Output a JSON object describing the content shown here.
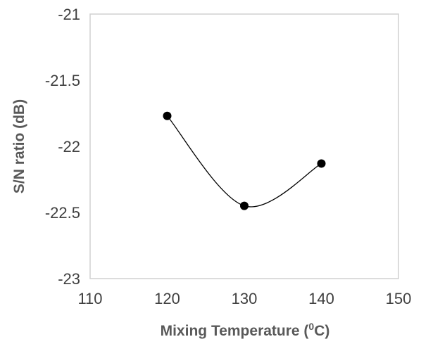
{
  "chart_data": {
    "type": "scatter",
    "title": "",
    "xlabel_main": "Mixing Temperature (",
    "xlabel_sup": "0",
    "xlabel_end": "C)",
    "ylabel": "S/N ratio (dB)",
    "xlim": [
      110,
      150
    ],
    "ylim": [
      -23,
      -21
    ],
    "x_ticks": [
      "110",
      "120",
      "130",
      "140",
      "150"
    ],
    "y_ticks": [
      "-21",
      "-21.5",
      "-22",
      "-22.5",
      "-23"
    ],
    "x_tick_values": [
      110,
      120,
      130,
      140,
      150
    ],
    "y_tick_values": [
      -21,
      -21.5,
      -22,
      -22.5,
      -23
    ],
    "grid": false,
    "smooth_line": true,
    "series": [
      {
        "x": [
          120,
          130,
          140
        ],
        "y": [
          -21.77,
          -22.45,
          -22.13
        ]
      }
    ]
  }
}
